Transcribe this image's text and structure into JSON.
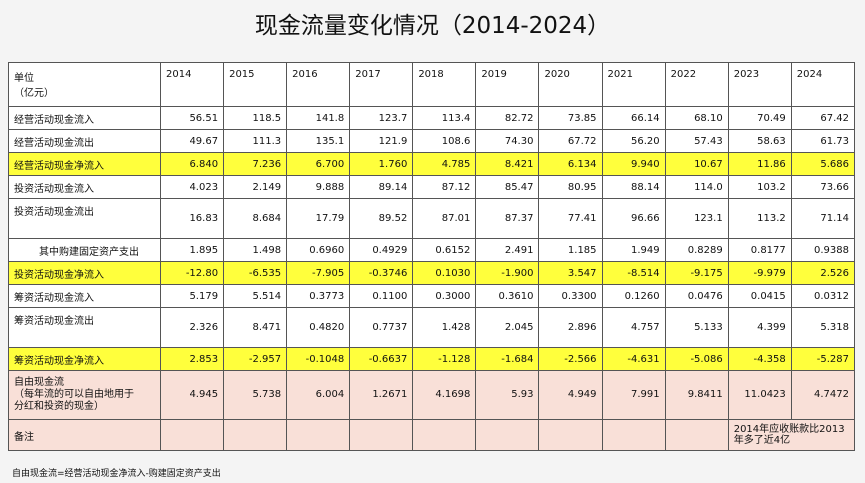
{
  "title": "现金流量变化情况（2014-2024）",
  "table": {
    "header": {
      "unit": "单位\n（亿元）",
      "years": [
        "2014",
        "2015",
        "2016",
        "2017",
        "2018",
        "2019",
        "2020",
        "2021",
        "2022",
        "2023",
        "2024"
      ]
    },
    "rows": [
      {
        "label": "经营活动现金流入",
        "values": [
          "56.51",
          "118.5",
          "141.8",
          "123.7",
          "113.4",
          "82.72",
          "73.85",
          "66.14",
          "68.10",
          "70.49",
          "67.42"
        ]
      },
      {
        "label": "经营活动现金流出",
        "values": [
          "49.67",
          "111.3",
          "135.1",
          "121.9",
          "108.6",
          "74.30",
          "67.72",
          "56.20",
          "57.43",
          "58.63",
          "61.73"
        ]
      },
      {
        "label": "经营活动现金净流入",
        "highlight": "yellow",
        "values": [
          "6.840",
          "7.236",
          "6.700",
          "1.760",
          "4.785",
          "8.421",
          "6.134",
          "9.940",
          "10.67",
          "11.86",
          "5.686"
        ]
      },
      {
        "label": "投资活动现金流入",
        "values": [
          "4.023",
          "2.149",
          "9.888",
          "89.14",
          "87.12",
          "85.47",
          "80.95",
          "88.14",
          "114.0",
          "103.2",
          "73.66"
        ]
      },
      {
        "label": "投资活动现金流出",
        "tall": true,
        "values": [
          "16.83",
          "8.684",
          "17.79",
          "89.52",
          "87.01",
          "87.37",
          "77.41",
          "96.66",
          "123.1",
          "113.2",
          "71.14"
        ]
      },
      {
        "label": "其中购建固定资产支出",
        "indent": true,
        "values": [
          "1.895",
          "1.498",
          "0.6960",
          "0.4929",
          "0.6152",
          "2.491",
          "1.185",
          "1.949",
          "0.8289",
          "0.8177",
          "0.9388"
        ]
      },
      {
        "label": "投资活动现金净流入",
        "highlight": "yellow",
        "values": [
          "-12.80",
          "-6.535",
          "-7.905",
          "-0.3746",
          "0.1030",
          "-1.900",
          "3.547",
          "-8.514",
          "-9.175",
          "-9.979",
          "2.526"
        ]
      },
      {
        "label": "筹资活动现金流入",
        "values": [
          "5.179",
          "5.514",
          "0.3773",
          "0.1100",
          "0.3000",
          "0.3610",
          "0.3300",
          "0.1260",
          "0.0476",
          "0.0415",
          "0.0312"
        ]
      },
      {
        "label": "筹资活动现金流出",
        "tall": true,
        "values": [
          "2.326",
          "8.471",
          "0.4820",
          "0.7737",
          "1.428",
          "2.045",
          "2.896",
          "4.757",
          "5.133",
          "4.399",
          "5.318"
        ]
      },
      {
        "label": "筹资活动现金净流入",
        "highlight": "yellow",
        "values": [
          "2.853",
          "-2.957",
          "-0.1048",
          "-0.6637",
          "-1.128",
          "-1.684",
          "-2.566",
          "-4.631",
          "-5.086",
          "-4.358",
          "-5.287"
        ]
      },
      {
        "label": "自由现金流\n（每年流的可以自由地用于\n分红和投资的现金）",
        "highlight": "pink",
        "values": [
          "4.945",
          "5.738",
          "6.004",
          "1.2671",
          "4.1698",
          "5.93",
          "4.949",
          "7.991",
          "9.8411",
          "11.0423",
          "4.7472"
        ]
      }
    ],
    "remark": {
      "label": "备注",
      "note": "2014年应收账款比2013年多了近4亿"
    }
  },
  "footnote": "自由现金流=经营活动现金净流入-购建固定资产支出"
}
